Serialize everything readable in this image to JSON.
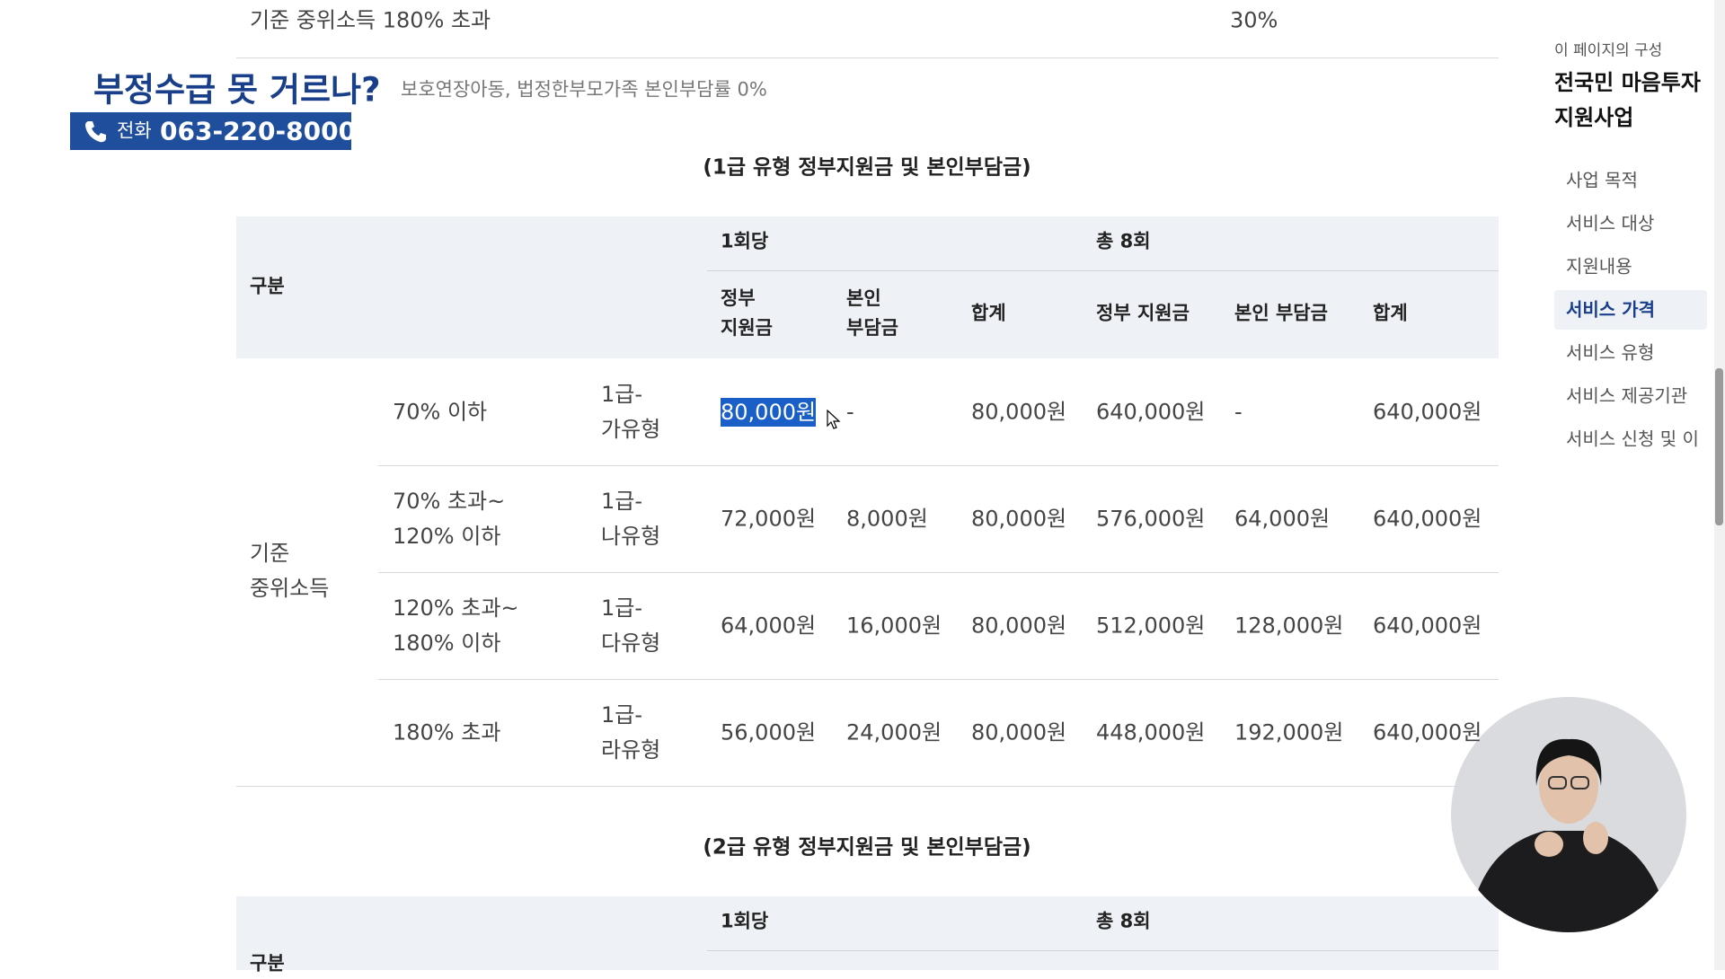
{
  "top_row": {
    "label": "기준 중위소득 180% 초과",
    "value": "30%"
  },
  "banner": {
    "headline": "부정수급 못 거르나?",
    "phone_label": "전화",
    "phone": "063-220-8000"
  },
  "note": "보호연장아동, 법정한부모가족 본인부담률 0%",
  "table1": {
    "title": "(1급 유형 정부지원금 및 본인부담금)",
    "header": {
      "category": "구분",
      "per_session": "1회당",
      "total": "총 8회",
      "columns": [
        "정부\n지원금",
        "본인\n부담금",
        "합계",
        "정부 지원금",
        "본인 부담금",
        "합계"
      ]
    },
    "group": "기준\n중위소득",
    "selected_cell": {
      "row": 0,
      "col": 2
    },
    "rows": [
      [
        "70% 이하",
        "1급-\n가유형",
        "80,000원",
        "-",
        "80,000원",
        "640,000원",
        "-",
        "640,000원"
      ],
      [
        "70% 초과~\n120% 이하",
        "1급-\n나유형",
        "72,000원",
        "8,000원",
        "80,000원",
        "576,000원",
        "64,000원",
        "640,000원"
      ],
      [
        "120% 초과~\n180% 이하",
        "1급-\n다유형",
        "64,000원",
        "16,000원",
        "80,000원",
        "512,000원",
        "128,000원",
        "640,000원"
      ],
      [
        "180% 초과",
        "1급-\n라유형",
        "56,000원",
        "24,000원",
        "80,000원",
        "448,000원",
        "192,000원",
        "640,000원"
      ]
    ]
  },
  "table2": {
    "title": "(2급 유형 정부지원금 및 본인부담금)",
    "header": {
      "category": "구분",
      "per_session": "1회당",
      "total": "총 8회"
    }
  },
  "sidebar": {
    "heading": "이 페이지의 구성",
    "title": "전국민 마음투자\n지원사업",
    "items": [
      "사업 목적",
      "서비스 대상",
      "지원내용",
      "서비스 가격",
      "서비스 유형",
      "서비스 제공기관",
      "서비스 신청 및 이"
    ],
    "active": 3
  }
}
